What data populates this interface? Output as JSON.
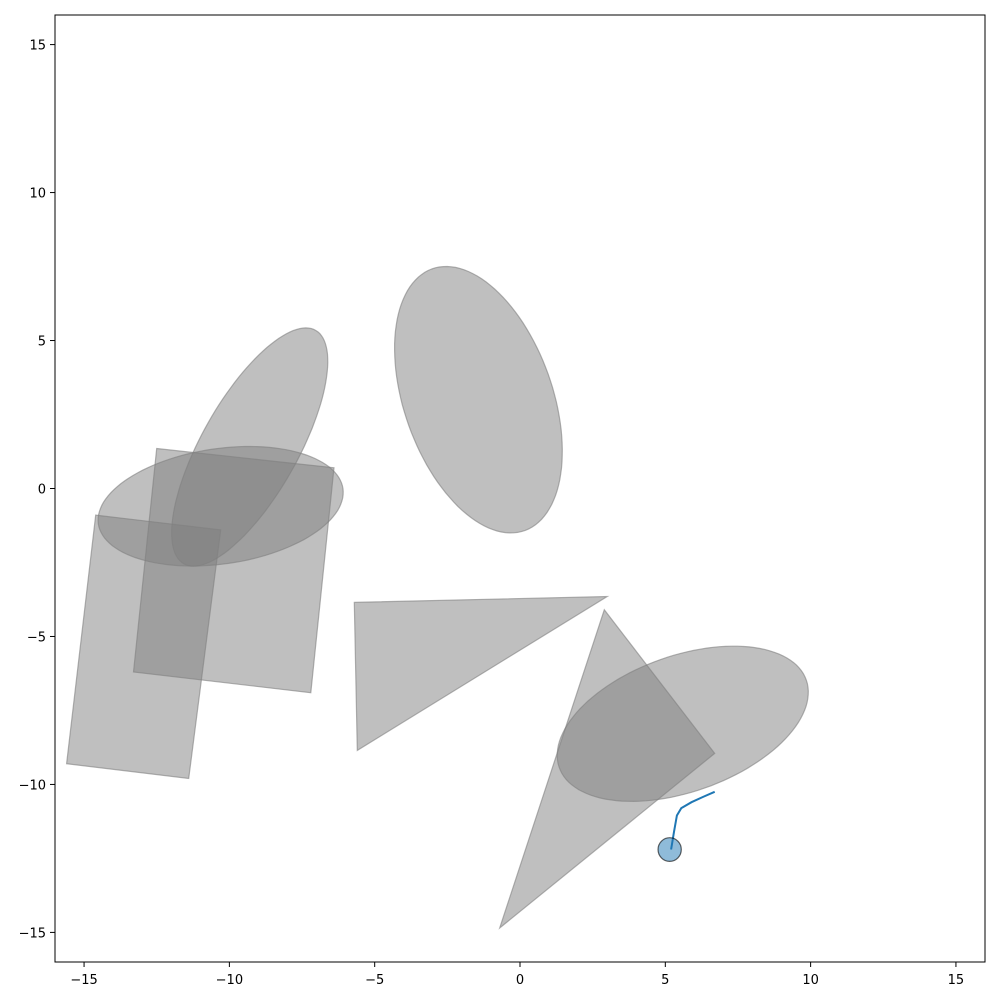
{
  "chart_data": {
    "type": "scatter",
    "title": "",
    "xlabel": "",
    "ylabel": "",
    "xlim": [
      -16,
      16
    ],
    "ylim": [
      -16,
      16
    ],
    "grid": false,
    "x_ticks": [
      -15,
      -10,
      -5,
      0,
      5,
      10,
      15
    ],
    "y_ticks": [
      -15,
      -10,
      -5,
      0,
      5,
      10,
      15
    ],
    "obstacle_color": "#808080",
    "obstacles": [
      {
        "kind": "ellipse",
        "cx": -10.3,
        "cy": -0.6,
        "rx": 4.25,
        "ry": 1.95,
        "angle": 8
      },
      {
        "kind": "ellipse",
        "cx": -9.3,
        "cy": 1.4,
        "rx": 4.55,
        "ry": 1.65,
        "angle": 60
      },
      {
        "kind": "ellipse",
        "cx": -1.43,
        "cy": 3.0,
        "rx": 4.7,
        "ry": 2.55,
        "angle": 110
      },
      {
        "kind": "ellipse",
        "cx": 5.6,
        "cy": -7.95,
        "rx": 4.5,
        "ry": 2.3,
        "angle": 19
      },
      {
        "kind": "polygon",
        "points": [
          [
            -12.5,
            1.35
          ],
          [
            -6.4,
            0.7
          ],
          [
            -7.2,
            -6.9
          ],
          [
            -13.3,
            -6.2
          ]
        ]
      },
      {
        "kind": "polygon",
        "points": [
          [
            -14.6,
            -0.9
          ],
          [
            -10.3,
            -1.4
          ],
          [
            -11.4,
            -9.8
          ],
          [
            -15.6,
            -9.3
          ]
        ]
      },
      {
        "kind": "polygon",
        "points": [
          [
            -5.7,
            -3.85
          ],
          [
            3.0,
            -3.65
          ],
          [
            -5.6,
            -8.85
          ]
        ]
      },
      {
        "kind": "polygon",
        "points": [
          [
            2.9,
            -4.1
          ],
          [
            6.7,
            -8.95
          ],
          [
            -0.7,
            -14.85
          ]
        ]
      }
    ],
    "path": {
      "color": "#1f77b4",
      "x": [
        5.2,
        5.3,
        5.4,
        5.55,
        5.9,
        6.3,
        6.7
      ],
      "y": [
        -12.2,
        -11.6,
        -11.05,
        -10.8,
        -10.6,
        -10.42,
        -10.25
      ]
    },
    "agent": {
      "color": "#1f77b4",
      "x": 5.15,
      "y": -12.2,
      "radius": 0.4
    }
  }
}
